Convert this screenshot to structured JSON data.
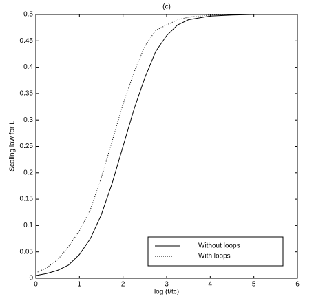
{
  "chart_data": {
    "type": "line",
    "title": "(c)",
    "x_label": "log (t/tc)",
    "y_label": "Scaling law for L",
    "x": [
      0,
      0.25,
      0.5,
      0.75,
      1,
      1.25,
      1.5,
      1.75,
      2,
      2.25,
      2.5,
      2.75,
      3,
      3.25,
      3.5,
      4,
      4.5,
      5,
      5.5
    ],
    "series": [
      {
        "name": "Without loops",
        "color": "#000000",
        "line_style": "solid",
        "values": [
          0.005,
          0.009,
          0.015,
          0.025,
          0.045,
          0.075,
          0.12,
          0.18,
          0.25,
          0.32,
          0.38,
          0.43,
          0.46,
          0.48,
          0.49,
          0.497,
          0.499,
          0.5,
          0.5
        ]
      },
      {
        "name": "With loops",
        "color": "#000000",
        "line_style": "dotted",
        "values": [
          0.01,
          0.02,
          0.035,
          0.06,
          0.09,
          0.13,
          0.19,
          0.26,
          0.33,
          0.39,
          0.44,
          0.47,
          0.48,
          0.49,
          0.495,
          0.499,
          0.5,
          0.5,
          0.5
        ]
      }
    ],
    "xlim": [
      0,
      6
    ],
    "xticks": [
      0,
      1,
      2,
      3,
      4,
      5,
      6
    ],
    "ylim": [
      0,
      0.5
    ],
    "yticks": [
      0,
      0.05,
      0.1,
      0.15,
      0.2,
      0.25,
      0.3,
      0.35,
      0.4,
      0.45,
      0.5
    ],
    "legend": "lower right"
  }
}
